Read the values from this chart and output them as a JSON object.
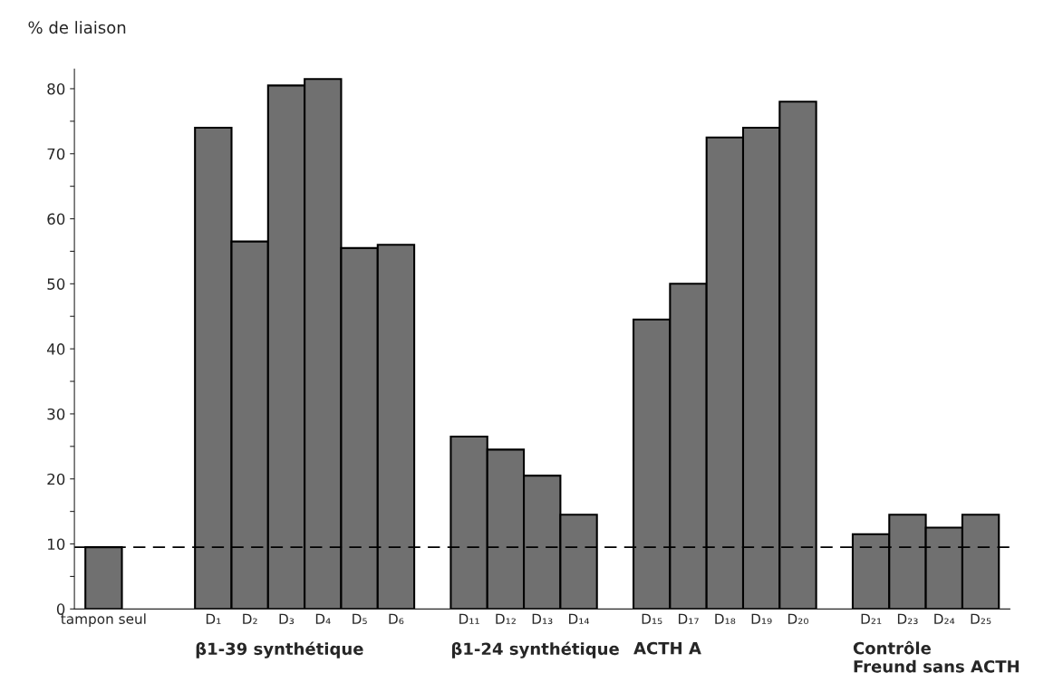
{
  "chart_data": {
    "type": "bar",
    "ylabel": "% de liaison",
    "categories": [
      "tampon seul",
      null,
      null,
      "D₁",
      "D₂",
      "D₃",
      "D₄",
      "D₅",
      "D₆",
      null,
      "D₁₁",
      "D₁₂",
      "D₁₃",
      "D₁₄",
      null,
      "D₁₅",
      "D₁₇",
      "D₁₈",
      "D₁₉",
      "D₂₀",
      null,
      "D₂₁",
      "D₂₃",
      "D₂₄",
      "D₂₅"
    ],
    "values": [
      9.5,
      null,
      null,
      74,
      56.5,
      80.5,
      81.5,
      55.5,
      56,
      null,
      26.5,
      24.5,
      20.5,
      14.5,
      null,
      44.5,
      50,
      72.5,
      74,
      78,
      null,
      11.5,
      14.5,
      12.5,
      14.5
    ],
    "color": "#707070",
    "ylim": [
      0,
      83
    ],
    "yticks": [
      0,
      {
        "value": 5,
        "label": null
      },
      10,
      {
        "value": 15,
        "label": null
      },
      20,
      {
        "value": 25,
        "label": null
      },
      30,
      {
        "value": 35,
        "label": null
      },
      40,
      {
        "value": 45,
        "label": null
      },
      50,
      {
        "value": 55,
        "label": null
      },
      60,
      {
        "value": 65,
        "label": null
      },
      70,
      {
        "value": 75,
        "label": null
      },
      80
    ],
    "ref_lines": [
      {
        "axis": "y",
        "value": 9.5,
        "color": "#000000",
        "line_style": "dashed"
      }
    ],
    "annotations": [
      "β1-39 synthétique",
      "β1-24 synthétique",
      "ACTH A",
      "Contrôle\nFreund sans ACTH"
    ],
    "grid": false,
    "legend": false
  }
}
